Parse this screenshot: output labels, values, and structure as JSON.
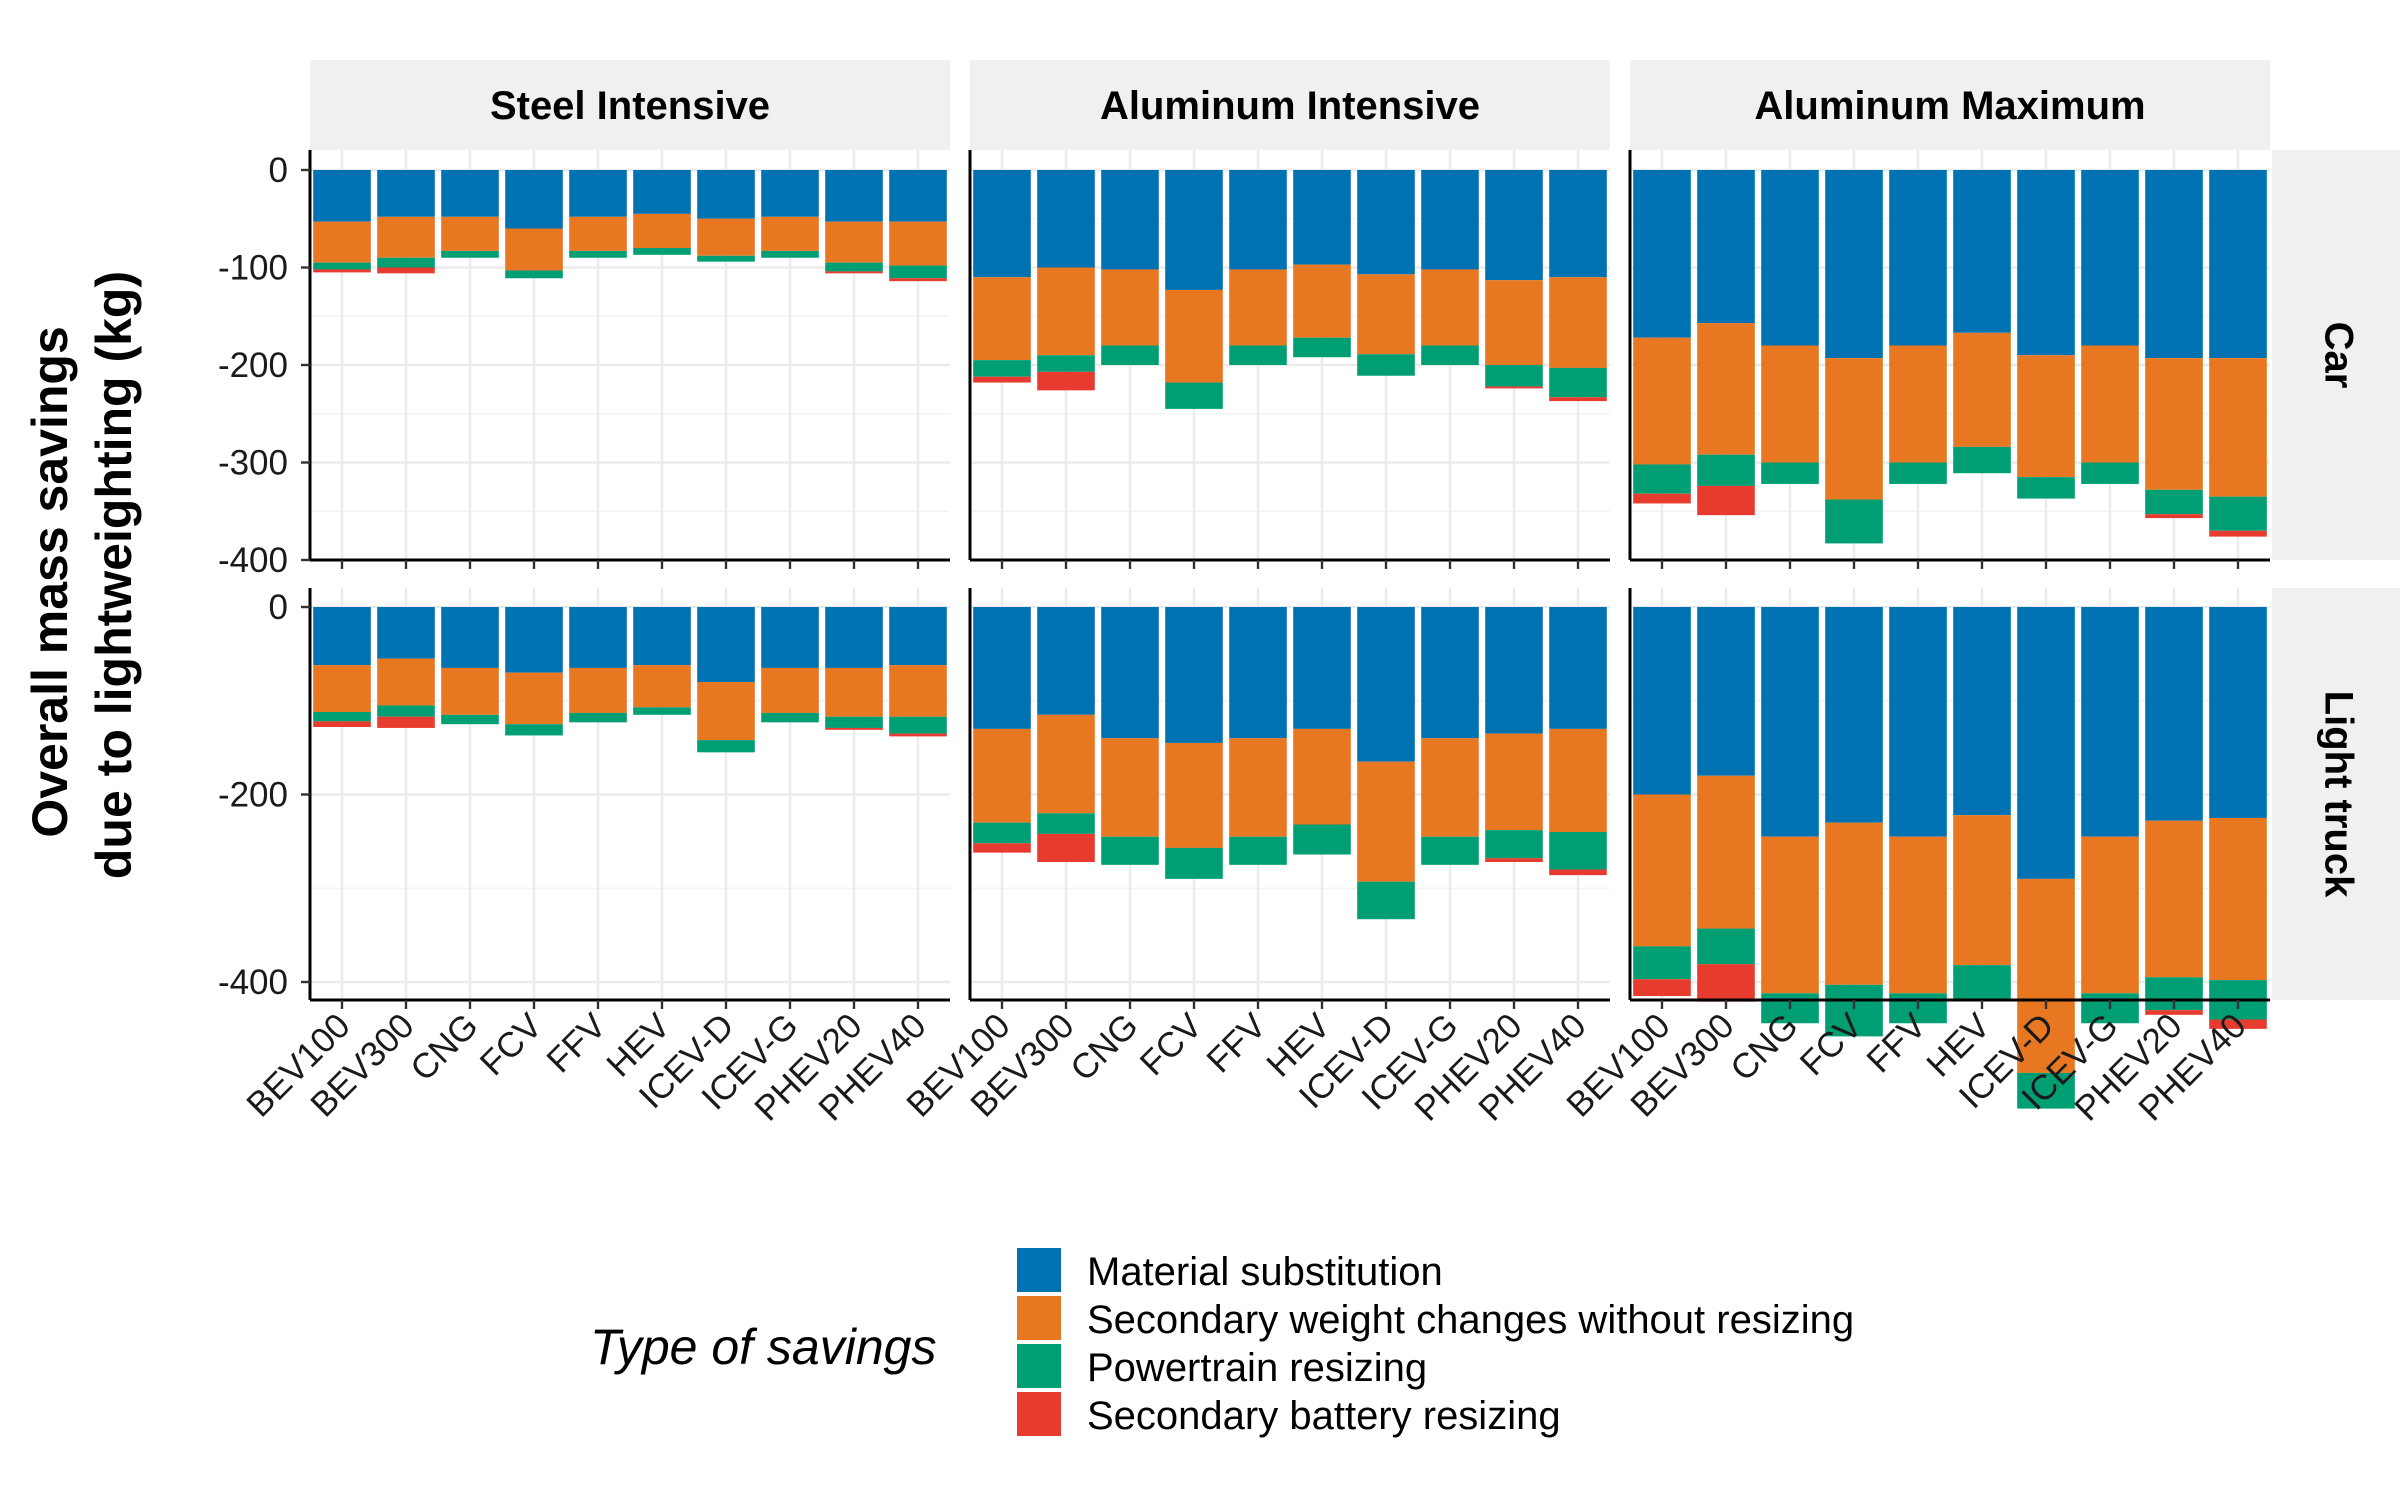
{
  "chart_data": {
    "type": "bar",
    "stacked": true,
    "ylabel_lines": [
      "Overall mass savings",
      "due to lightweighting (kg)"
    ],
    "columns": [
      "Steel Intensive",
      "Aluminum Intensive",
      "Aluminum Maximum"
    ],
    "rows": [
      "Car",
      "Light truck"
    ],
    "categories": [
      "BEV100",
      "BEV300",
      "CNG",
      "FCV",
      "FFV",
      "HEV",
      "ICEV-D",
      "ICEV-G",
      "PHEV20",
      "PHEV40"
    ],
    "legend": {
      "title": "Type of savings",
      "position": "bottom",
      "entries": [
        "Material substitution",
        "Secondary weight changes without resizing",
        "Powertrain resizing",
        "Secondary battery resizing"
      ]
    },
    "colors": [
      "#0072B2",
      "#E87722",
      "#009E73",
      "#E63B2E"
    ],
    "grid": true,
    "row_axes": {
      "Car": {
        "ylim": [
          -400,
          0
        ],
        "ticks": [
          0,
          -100,
          -200,
          -300,
          -400
        ],
        "tick_labels": [
          "0",
          "-100",
          "-200",
          "-300",
          "-400"
        ]
      },
      "Light truck": {
        "ylim": [
          -560,
          0
        ],
        "ticks": [
          0,
          -200,
          -400
        ],
        "tick_labels": [
          "0",
          "-200",
          "-400"
        ]
      }
    },
    "panels": [
      {
        "row": "Car",
        "column": "Steel Intensive",
        "series": [
          {
            "name": "Material substitution",
            "values": [
              -53,
              -48,
              -48,
              -60,
              -48,
              -45,
              -50,
              -48,
              -53,
              -53
            ]
          },
          {
            "name": "Secondary weight changes without resizing",
            "values": [
              -42,
              -42,
              -35,
              -43,
              -35,
              -35,
              -38,
              -35,
              -42,
              -45
            ]
          },
          {
            "name": "Powertrain resizing",
            "values": [
              -7,
              -10,
              -7,
              -8,
              -7,
              -7,
              -6,
              -7,
              -9,
              -13
            ]
          },
          {
            "name": "Secondary battery resizing",
            "values": [
              -3,
              -6,
              0,
              0,
              0,
              0,
              0,
              0,
              -2,
              -3
            ]
          }
        ]
      },
      {
        "row": "Car",
        "column": "Aluminum Intensive",
        "series": [
          {
            "name": "Material substitution",
            "values": [
              -110,
              -100,
              -102,
              -123,
              -102,
              -97,
              -107,
              -102,
              -113,
              -110
            ]
          },
          {
            "name": "Secondary weight changes without resizing",
            "values": [
              -85,
              -90,
              -78,
              -95,
              -78,
              -75,
              -82,
              -78,
              -87,
              -93
            ]
          },
          {
            "name": "Powertrain resizing",
            "values": [
              -17,
              -17,
              -20,
              -27,
              -20,
              -20,
              -22,
              -20,
              -22,
              -30
            ]
          },
          {
            "name": "Secondary battery resizing",
            "values": [
              -6,
              -19,
              0,
              0,
              0,
              0,
              0,
              0,
              -2,
              -4
            ]
          }
        ]
      },
      {
        "row": "Car",
        "column": "Aluminum Maximum",
        "series": [
          {
            "name": "Material substitution",
            "values": [
              -172,
              -157,
              -180,
              -193,
              -180,
              -167,
              -190,
              -180,
              -193,
              -193
            ]
          },
          {
            "name": "Secondary weight changes without resizing",
            "values": [
              -130,
              -135,
              -120,
              -145,
              -120,
              -117,
              -125,
              -120,
              -135,
              -142
            ]
          },
          {
            "name": "Powertrain resizing",
            "values": [
              -30,
              -32,
              -22,
              -45,
              -22,
              -27,
              -22,
              -22,
              -25,
              -35
            ]
          },
          {
            "name": "Secondary battery resizing",
            "values": [
              -10,
              -30,
              0,
              0,
              0,
              0,
              0,
              0,
              -4,
              -6
            ]
          }
        ]
      },
      {
        "row": "Light truck",
        "column": "Steel Intensive",
        "series": [
          {
            "name": "Material substitution",
            "values": [
              -62,
              -55,
              -65,
              -70,
              -65,
              -62,
              -80,
              -65,
              -65,
              -62
            ]
          },
          {
            "name": "Secondary weight changes without resizing",
            "values": [
              -50,
              -50,
              -50,
              -55,
              -48,
              -45,
              -62,
              -48,
              -52,
              -55
            ]
          },
          {
            "name": "Powertrain resizing",
            "values": [
              -10,
              -12,
              -10,
              -12,
              -10,
              -8,
              -13,
              -10,
              -12,
              -18
            ]
          },
          {
            "name": "Secondary battery resizing",
            "values": [
              -6,
              -12,
              0,
              0,
              0,
              0,
              0,
              0,
              -2,
              -3
            ]
          }
        ]
      },
      {
        "row": "Light truck",
        "column": "Aluminum Intensive",
        "series": [
          {
            "name": "Material substitution",
            "values": [
              -130,
              -115,
              -140,
              -145,
              -140,
              -130,
              -165,
              -140,
              -135,
              -130
            ]
          },
          {
            "name": "Secondary weight changes without resizing",
            "values": [
              -100,
              -105,
              -105,
              -112,
              -105,
              -102,
              -128,
              -105,
              -103,
              -110
            ]
          },
          {
            "name": "Powertrain resizing",
            "values": [
              -22,
              -22,
              -30,
              -33,
              -30,
              -32,
              -40,
              -30,
              -30,
              -40
            ]
          },
          {
            "name": "Secondary battery resizing",
            "values": [
              -10,
              -30,
              0,
              0,
              0,
              0,
              0,
              0,
              -4,
              -6
            ]
          }
        ]
      },
      {
        "row": "Light truck",
        "column": "Aluminum Maximum",
        "series": [
          {
            "name": "Material substitution",
            "values": [
              -200,
              -180,
              -245,
              -230,
              -245,
              -222,
              -290,
              -245,
              -228,
              -225
            ]
          },
          {
            "name": "Secondary weight changes without resizing",
            "values": [
              -162,
              -163,
              -167,
              -173,
              -167,
              -160,
              -207,
              -167,
              -167,
              -173
            ]
          },
          {
            "name": "Powertrain resizing",
            "values": [
              -35,
              -38,
              -32,
              -55,
              -32,
              -38,
              -38,
              -32,
              -35,
              -42
            ]
          },
          {
            "name": "Secondary battery resizing",
            "values": [
              -18,
              -40,
              0,
              0,
              0,
              0,
              0,
              0,
              -5,
              -10
            ]
          }
        ]
      }
    ]
  }
}
